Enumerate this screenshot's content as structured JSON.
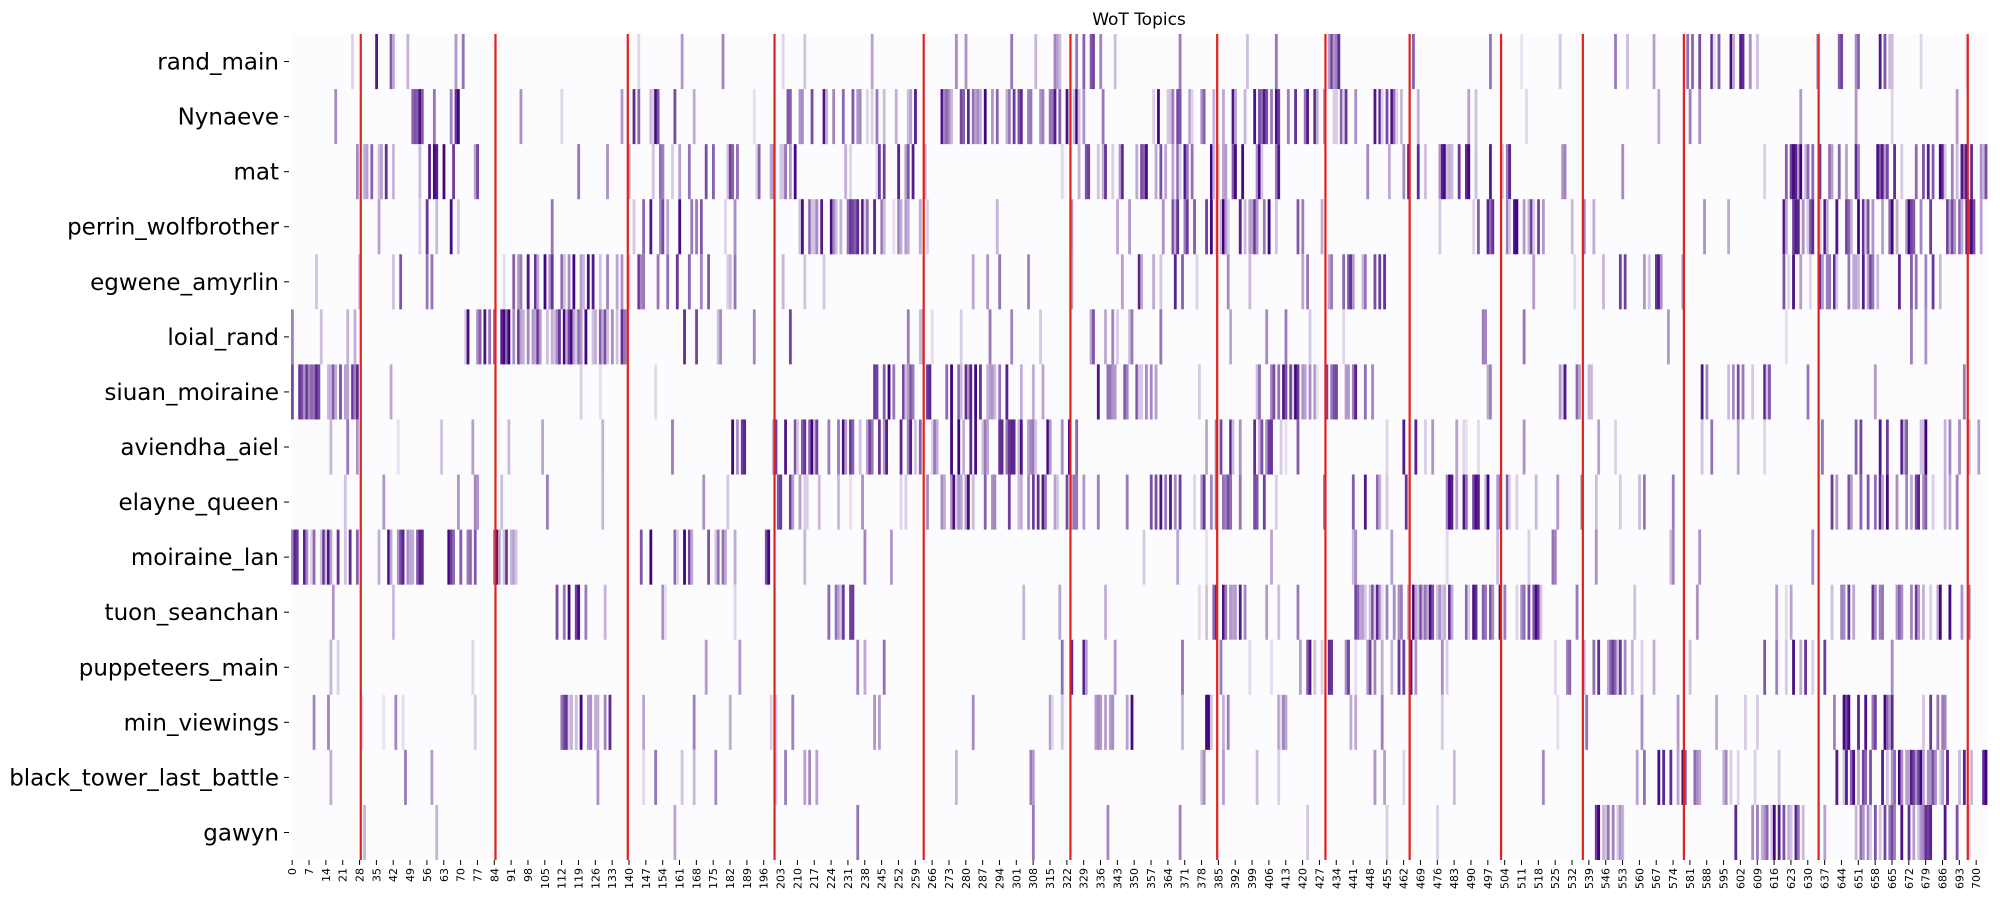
{
  "chart_data": {
    "type": "heatmap",
    "title": "WoT Topics",
    "rows": [
      "rand_main",
      "Nynaeve",
      "mat",
      "perrin_wolfbrother",
      "egwene_amyrlin",
      "loial_rand",
      "siuan_moiraine",
      "aviendha_aiel",
      "elayne_queen",
      "moiraine_lan",
      "tuon_seanchan",
      "puppeteers_main",
      "min_viewings",
      "black_tower_last_battle",
      "gawyn"
    ],
    "x_range": [
      0,
      705
    ],
    "x_tick_step": 7,
    "x_tick_labels": [
      "0",
      "7",
      "14",
      "21",
      "28",
      "35",
      "42",
      "49",
      "56",
      "63",
      "70",
      "77",
      "84",
      "91",
      "98",
      "105",
      "112",
      "119",
      "126",
      "133",
      "140",
      "147",
      "154",
      "161",
      "168",
      "175",
      "182",
      "189",
      "196",
      "203",
      "210",
      "217",
      "224",
      "231",
      "238",
      "245",
      "252",
      "259",
      "266",
      "273",
      "280",
      "287",
      "294",
      "301",
      "308",
      "315",
      "322",
      "329",
      "336",
      "343",
      "350",
      "357",
      "364",
      "371",
      "378",
      "385",
      "392",
      "399",
      "406",
      "413",
      "420",
      "427",
      "434",
      "441",
      "448",
      "455",
      "462",
      "469",
      "476",
      "483",
      "490",
      "497",
      "504",
      "511",
      "518",
      "525",
      "532",
      "539",
      "546",
      "553",
      "560",
      "567",
      "574",
      "581",
      "588",
      "595",
      "602",
      "609",
      "616",
      "623",
      "630",
      "637",
      "644",
      "651",
      "658",
      "665",
      "672",
      "679",
      "686",
      "693",
      "700"
    ],
    "book_boundaries": [
      29,
      85,
      140,
      201,
      263,
      324,
      385,
      430,
      465,
      503,
      537,
      579,
      635,
      697
    ],
    "colormap": {
      "low": "#fcfbfd",
      "high": "#3f007d",
      "boundary": "#e3211c"
    },
    "topic_spans": [
      [
        [
          29,
          45,
          0.25
        ],
        [
          70,
          72,
          0.3
        ],
        [
          200,
          210,
          0.15
        ],
        [
          280,
          285,
          0.3
        ],
        [
          325,
          340,
          0.35
        ],
        [
          430,
          440,
          0.3
        ],
        [
          465,
          470,
          0.25
        ],
        [
          580,
          610,
          0.35
        ],
        [
          630,
          660,
          0.3
        ],
        [
          660,
          670,
          0.3
        ]
      ],
      [
        [
          45,
          70,
          0.35
        ],
        [
          140,
          170,
          0.3
        ],
        [
          205,
          260,
          0.45
        ],
        [
          270,
          330,
          0.5
        ],
        [
          355,
          380,
          0.4
        ],
        [
          390,
          440,
          0.35
        ],
        [
          450,
          470,
          0.25
        ]
      ],
      [
        [
          29,
          80,
          0.35
        ],
        [
          150,
          210,
          0.35
        ],
        [
          240,
          270,
          0.2
        ],
        [
          330,
          420,
          0.35
        ],
        [
          460,
          510,
          0.3
        ],
        [
          620,
          705,
          0.45
        ]
      ],
      [
        [
          50,
          70,
          0.3
        ],
        [
          140,
          190,
          0.3
        ],
        [
          210,
          260,
          0.45
        ],
        [
          360,
          420,
          0.4
        ],
        [
          490,
          540,
          0.3
        ],
        [
          620,
          705,
          0.5
        ]
      ],
      [
        [
          40,
          60,
          0.15
        ],
        [
          90,
          150,
          0.4
        ],
        [
          160,
          185,
          0.35
        ],
        [
          340,
          380,
          0.3
        ],
        [
          430,
          460,
          0.3
        ],
        [
          550,
          570,
          0.3
        ],
        [
          620,
          690,
          0.45
        ]
      ],
      [
        [
          70,
          90,
          0.35
        ],
        [
          90,
          140,
          0.65
        ],
        [
          160,
          210,
          0.2
        ],
        [
          330,
          340,
          0.2
        ]
      ],
      [
        [
          0,
          28,
          0.75
        ],
        [
          140,
          150,
          0.2
        ],
        [
          240,
          300,
          0.35
        ],
        [
          330,
          360,
          0.3
        ],
        [
          400,
          450,
          0.3
        ],
        [
          520,
          540,
          0.3
        ],
        [
          585,
          615,
          0.3
        ]
      ],
      [
        [
          170,
          210,
          0.2
        ],
        [
          200,
          330,
          0.45
        ],
        [
          380,
          420,
          0.3
        ],
        [
          460,
          475,
          0.25
        ],
        [
          650,
          690,
          0.3
        ]
      ],
      [
        [
          60,
          70,
          0.15
        ],
        [
          200,
          230,
          0.25
        ],
        [
          270,
          330,
          0.35
        ],
        [
          355,
          410,
          0.35
        ],
        [
          440,
          470,
          0.3
        ],
        [
          480,
          510,
          0.35
        ],
        [
          640,
          690,
          0.3
        ]
      ],
      [
        [
          0,
          28,
          0.5
        ],
        [
          35,
          55,
          0.65
        ],
        [
          65,
          95,
          0.45
        ],
        [
          140,
          170,
          0.35
        ],
        [
          170,
          200,
          0.25
        ]
      ],
      [
        [
          110,
          130,
          0.25
        ],
        [
          220,
          240,
          0.25
        ],
        [
          380,
          400,
          0.3
        ],
        [
          440,
          470,
          0.55
        ],
        [
          470,
          500,
          0.55
        ],
        [
          500,
          520,
          0.4
        ],
        [
          640,
          690,
          0.3
        ]
      ],
      [
        [
          15,
          17,
          0.45
        ],
        [
          320,
          330,
          0.2
        ],
        [
          420,
          470,
          0.4
        ],
        [
          530,
          560,
          0.35
        ],
        [
          610,
          640,
          0.2
        ]
      ],
      [
        [
          110,
          135,
          0.45
        ],
        [
          330,
          350,
          0.3
        ],
        [
          380,
          390,
          0.45
        ],
        [
          440,
          460,
          0.2
        ],
        [
          640,
          690,
          0.3
        ]
      ],
      [
        [
          300,
          310,
          0.15
        ],
        [
          560,
          590,
          0.15
        ],
        [
          640,
          705,
          0.6
        ]
      ],
      [
        [
          65,
          67,
          0.5
        ],
        [
          150,
          160,
          0.4
        ],
        [
          540,
          560,
          0.45
        ],
        [
          600,
          630,
          0.35
        ],
        [
          650,
          700,
          0.45
        ]
      ]
    ]
  }
}
